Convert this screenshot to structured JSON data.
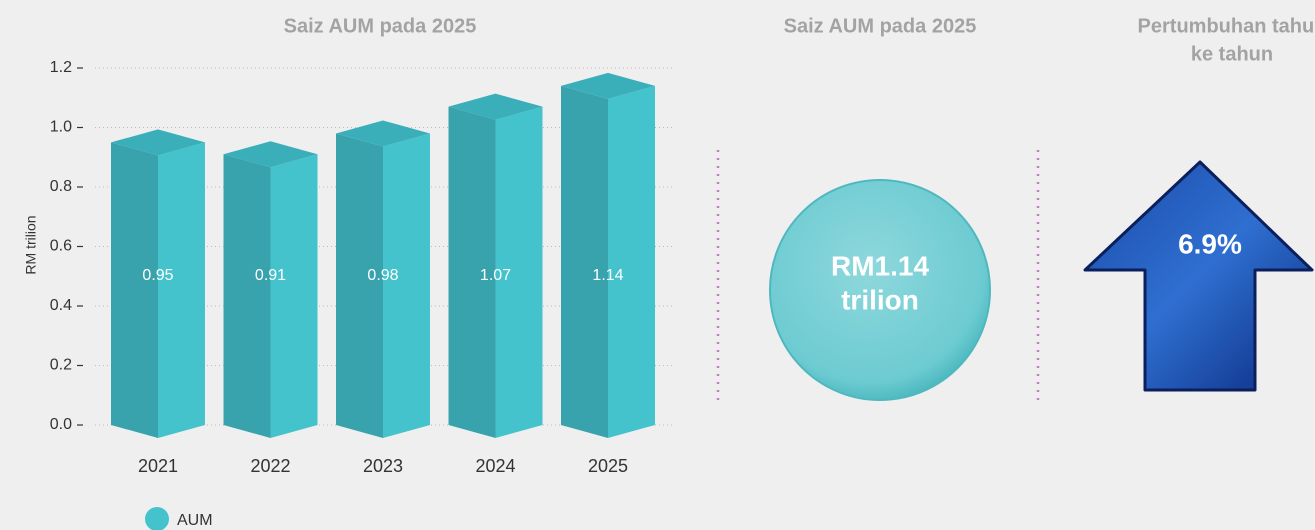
{
  "chart_data": {
    "type": "bar3d",
    "title": "Saiz AUM pada 2025",
    "ylabel": "RM trilion",
    "categories": [
      "2021",
      "2022",
      "2023",
      "2024",
      "2025"
    ],
    "series": [
      {
        "name": "AUM",
        "color": "#45c3cc",
        "values": [
          0.95,
          0.91,
          0.98,
          1.07,
          1.14
        ]
      }
    ],
    "ylim": [
      0,
      1.2
    ],
    "yticks": [
      {
        "value": 0,
        "label": "0.0"
      },
      0.2,
      0.4,
      0.6,
      0.8,
      {
        "value": 1,
        "label": "1.0"
      },
      1.2
    ],
    "grid": true,
    "legend": "bottom-left"
  },
  "panels": [
    {
      "title": "Saiz AUM pada 2025",
      "value_lines": [
        "RM1.14",
        "trilion"
      ]
    },
    {
      "title_lines": [
        "Pertumbuhan tahun",
        "ke tahun"
      ],
      "value": "6.9%"
    }
  ]
}
